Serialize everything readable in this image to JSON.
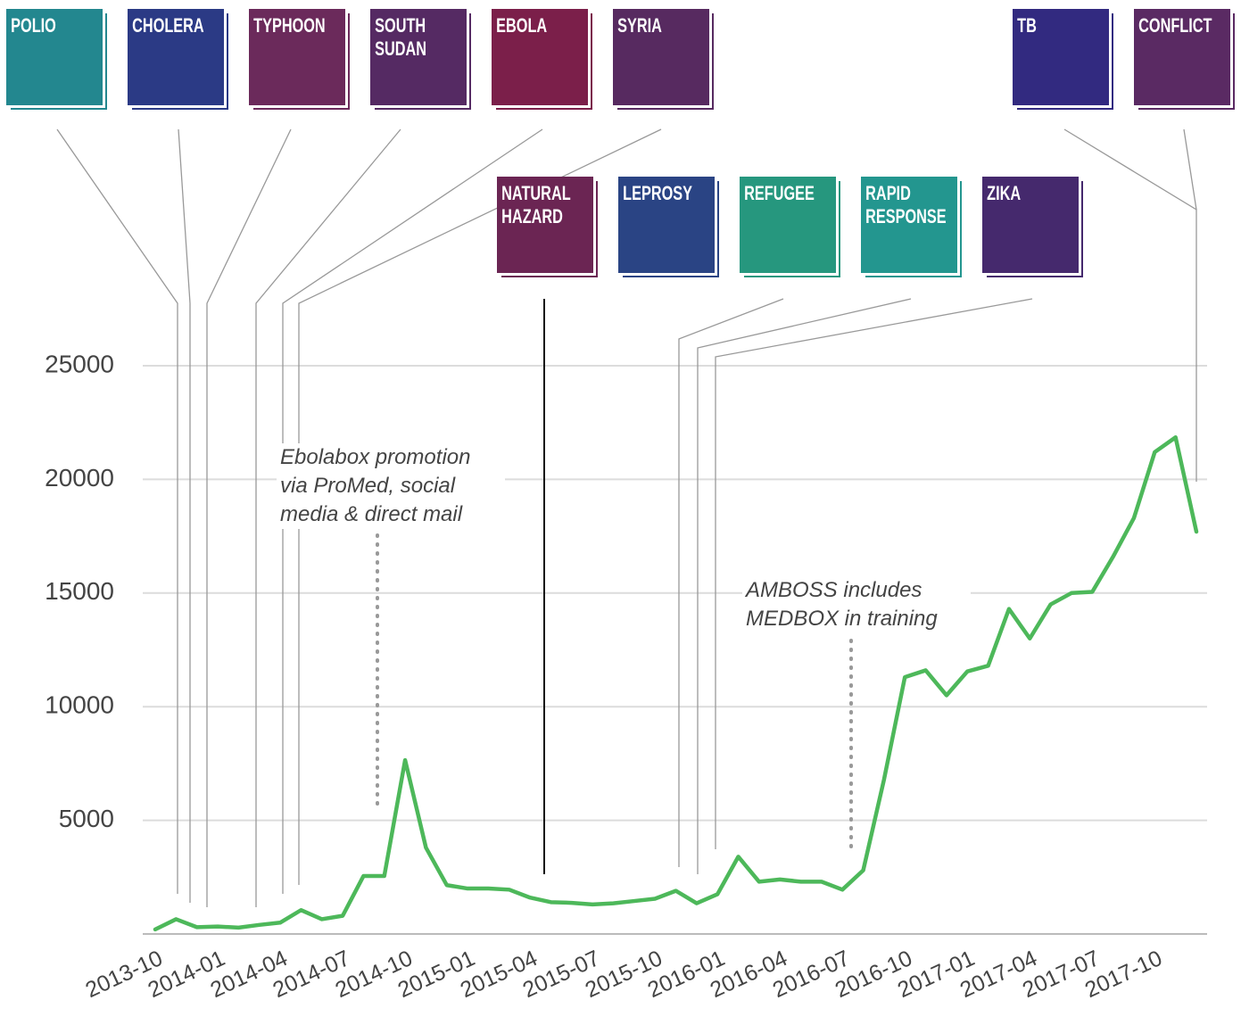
{
  "chart_data": {
    "type": "line",
    "categories": [
      "2013-10",
      null,
      null,
      "2014-01",
      null,
      null,
      "2014-04",
      null,
      null,
      "2014-07",
      null,
      null,
      "2014-10",
      null,
      null,
      "2015-01",
      null,
      null,
      "2015-04",
      null,
      null,
      "2015-07",
      null,
      null,
      "2015-10",
      null,
      null,
      "2016-01",
      null,
      null,
      "2016-04",
      null,
      null,
      "2016-07",
      null,
      null,
      "2016-10",
      null,
      null,
      "2017-01",
      null,
      null,
      "2017-04",
      null,
      null,
      "2017-07",
      null,
      null,
      "2017-10",
      null,
      null
    ],
    "series": [
      {
        "color": "#4db85a",
        "values": [
          200,
          650,
          300,
          330,
          280,
          400,
          500,
          1050,
          650,
          800,
          2550,
          2550,
          7650,
          3800,
          2150,
          2000,
          2000,
          1950,
          1600,
          1400,
          1370,
          1300,
          1350,
          1450,
          1550,
          1900,
          1350,
          1750,
          3400,
          2300,
          2400,
          2300,
          2300,
          1950,
          2800,
          6800,
          11300,
          11600,
          10500,
          11550,
          11800,
          14300,
          13000,
          14500,
          15000,
          15050,
          16600,
          18300,
          21200,
          21850,
          17700
        ]
      }
    ],
    "ylim": [
      0,
      25000
    ],
    "yticks": [
      5000,
      10000,
      15000,
      20000,
      25000
    ],
    "grid": true,
    "events": [
      {
        "label": "POLIO",
        "color": "#23878f"
      },
      {
        "label": "CHOLERA",
        "color": "#2b3a85"
      },
      {
        "label": "TYPHOON",
        "color": "#6b2a5b"
      },
      {
        "label": "SOUTH SUDAN",
        "color": "#552a63"
      },
      {
        "label": "EBOLA",
        "color": "#7b1f4a"
      },
      {
        "label": "SYRIA",
        "color": "#572a60"
      },
      {
        "label": "NATURAL HAZARD",
        "color": "#6b2553"
      },
      {
        "label": "LEPROSY",
        "color": "#2a4484"
      },
      {
        "label": "REFUGEE",
        "color": "#26977e"
      },
      {
        "label": "RAPID RESPONSE",
        "color": "#23968f"
      },
      {
        "label": "ZIKA",
        "color": "#45296d"
      },
      {
        "label": "TB",
        "color": "#322a80"
      },
      {
        "label": "CONFLICT",
        "color": "#5a2a63"
      }
    ],
    "annotations": [
      "Ebolabox promotion via ProMed, social media & direct mail",
      "AMBOSS includes MEDBOX in training"
    ]
  }
}
